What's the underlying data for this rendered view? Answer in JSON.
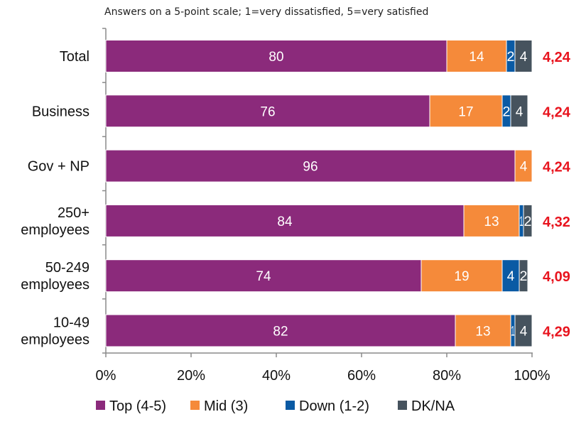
{
  "chart_data": {
    "type": "bar",
    "orientation": "horizontal",
    "stacked": true,
    "subtitle": "Answers on a 5-point scale; 1=very dissatisfied, 5=very satisfied",
    "categories": [
      [
        "Total"
      ],
      [
        "Business"
      ],
      [
        "Gov + NP"
      ],
      [
        "250+",
        "employees"
      ],
      [
        "50-249",
        "employees"
      ],
      [
        "10-49",
        "employees"
      ]
    ],
    "series": [
      {
        "name": "Top (4-5)",
        "color": "#8b2a7b",
        "values": [
          80,
          76,
          96,
          84,
          74,
          82
        ]
      },
      {
        "name": "Mid (3)",
        "color": "#f58a3a",
        "values": [
          14,
          17,
          4,
          13,
          19,
          13
        ]
      },
      {
        "name": "Down (1-2)",
        "color": "#0a5aa4",
        "values": [
          2,
          2,
          0,
          1,
          4,
          1
        ]
      },
      {
        "name": "DK/NA",
        "color": "#46535e",
        "values": [
          4,
          4,
          0,
          2,
          2,
          4
        ]
      }
    ],
    "means": [
      "4,24",
      "4,24",
      "4,24",
      "4,32",
      "4,09",
      "4,29"
    ],
    "mean_color": "#e8141e",
    "xticks": [
      "0%",
      "20%",
      "40%",
      "60%",
      "80%",
      "100%"
    ],
    "xlim": [
      0,
      100
    ],
    "grid": false,
    "legend_position": "bottom"
  }
}
